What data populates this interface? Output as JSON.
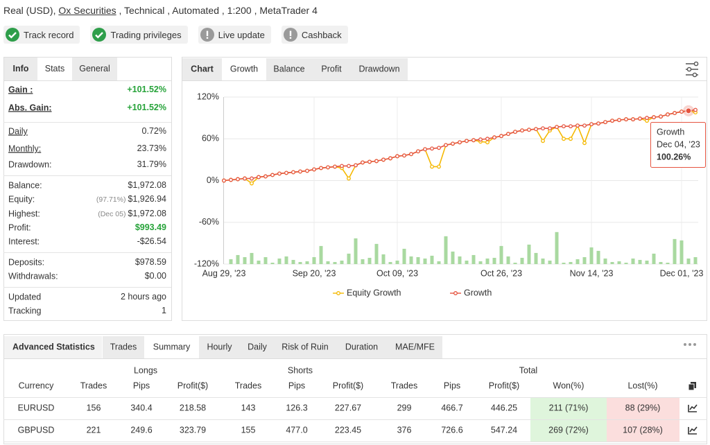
{
  "header": {
    "account": "Real (USD),",
    "broker": "Ox Securities",
    "details": ", Technical , Automated , 1:200 , MetaTrader 4"
  },
  "badges": [
    {
      "label": "Track record",
      "status": "ok"
    },
    {
      "label": "Trading privileges",
      "status": "ok"
    },
    {
      "label": "Live update",
      "status": "warn"
    },
    {
      "label": "Cashback",
      "status": "warn"
    }
  ],
  "info_panel": {
    "tabs": [
      "Info",
      "Stats",
      "General"
    ],
    "active_tab": 1,
    "groups": [
      [
        {
          "label": "Gain :",
          "value": "+101.52%",
          "color": "#27a33a",
          "underlined": true
        },
        {
          "label": "Abs. Gain:",
          "value": "+101.52%",
          "color": "#27a33a",
          "underlined": true
        }
      ],
      [
        {
          "label": "Daily",
          "value": "0.72%",
          "underlined": true
        },
        {
          "label": "Monthly:",
          "value": "23.73%",
          "underlined": true
        },
        {
          "label": "Drawdown:",
          "value": "31.79%"
        }
      ],
      [
        {
          "label": "Balance:",
          "value": "$1,972.08"
        },
        {
          "label": "Equity:",
          "note": "(97.71%)",
          "value": "$1,926.94"
        },
        {
          "label": "Highest:",
          "note": "(Dec 05)",
          "value": "$1,972.08"
        },
        {
          "label": "Profit:",
          "value": "$993.49",
          "color": "#27a33a"
        },
        {
          "label": "Interest:",
          "value": "-$26.54"
        }
      ],
      [
        {
          "label": "Deposits:",
          "value": "$978.59"
        },
        {
          "label": "Withdrawals:",
          "value": "$0.00"
        }
      ],
      [
        {
          "label": "Updated",
          "value": "2 hours ago"
        },
        {
          "label": "Tracking",
          "value": "1"
        }
      ]
    ]
  },
  "chart_panel": {
    "tabs": [
      "Chart",
      "Growth",
      "Balance",
      "Profit",
      "Drawdown"
    ],
    "active_tab": 1
  },
  "chart_data": {
    "type": "line",
    "categories": [
      "Aug 29, '23",
      null,
      null,
      null,
      null,
      null,
      null,
      null,
      null,
      null,
      null,
      null,
      null,
      "Sep 20, '23",
      null,
      null,
      null,
      null,
      null,
      null,
      null,
      null,
      null,
      null,
      null,
      "Oct 09, '23",
      null,
      null,
      null,
      null,
      null,
      null,
      null,
      null,
      null,
      null,
      null,
      null,
      null,
      null,
      "Oct 26, '23",
      null,
      null,
      null,
      null,
      null,
      null,
      null,
      null,
      null,
      null,
      null,
      null,
      "Nov 14, '23",
      null,
      null,
      null,
      null,
      null,
      null,
      null,
      null,
      null,
      null,
      null,
      null,
      "Dec 01, '23",
      null,
      null
    ],
    "series": [
      {
        "name": "Equity Growth",
        "color": "#f5b800",
        "values": [
          0,
          1,
          2,
          3,
          -4,
          5,
          6,
          8,
          10,
          11,
          12,
          13,
          14,
          16,
          18,
          19,
          20,
          18,
          3,
          22,
          26,
          27,
          28,
          30,
          32,
          35,
          36,
          38,
          42,
          45,
          20,
          20,
          51,
          53,
          55,
          57,
          58,
          56,
          55,
          62,
          64,
          67,
          70,
          72,
          73,
          74,
          57,
          72,
          77,
          60,
          60,
          79,
          54,
          81,
          82,
          84,
          86,
          87,
          88,
          88,
          89,
          86,
          91,
          92,
          95,
          97,
          99,
          100.26,
          98
        ]
      },
      {
        "name": "Growth",
        "color": "#e5533f",
        "values": [
          0,
          1,
          2,
          3,
          3,
          5,
          6,
          8,
          10,
          11,
          12,
          13,
          14,
          16,
          18,
          19,
          20,
          21,
          21,
          22,
          26,
          27,
          28,
          30,
          32,
          35,
          36,
          38,
          42,
          45,
          46,
          47,
          51,
          53,
          55,
          57,
          58,
          59,
          60,
          62,
          64,
          67,
          70,
          72,
          73,
          74,
          75,
          75,
          77,
          78,
          78,
          79,
          79,
          81,
          82,
          84,
          86,
          87,
          88,
          88,
          89,
          90,
          91,
          92,
          95,
          97,
          99,
          100.26,
          101.52
        ]
      }
    ],
    "bars": {
      "color": "#a9d9a0",
      "values": [
        null,
        -113,
        -107,
        -110,
        -104,
        -115,
        -110,
        -118,
        -112,
        -109,
        -114,
        -117,
        -116,
        -110,
        -94,
        -116,
        -117,
        -115,
        -105,
        -83,
        -113,
        -111,
        -91,
        -106,
        -117,
        -115,
        -98,
        -109,
        -110,
        -112,
        -108,
        -116,
        -80,
        -102,
        -109,
        -115,
        -107,
        -116,
        -112,
        -111,
        -94,
        -109,
        -118,
        -111,
        -92,
        -104,
        -112,
        -115,
        -74,
        -118,
        -117,
        -113,
        -110,
        -96,
        -101,
        -112,
        -117,
        -116,
        -118,
        -112,
        -114,
        -115,
        -105,
        -117,
        -118,
        -84,
        -86,
        -112,
        -110
      ]
    },
    "ylim": [
      -120,
      120
    ],
    "yticks": [
      {
        "value": -120,
        "label": "-120%"
      },
      {
        "value": -60,
        "label": "-60%"
      },
      {
        "value": 0,
        "label": "0%"
      },
      {
        "value": 60,
        "label": "60%"
      },
      {
        "value": 120,
        "label": "120%"
      }
    ],
    "grid": true,
    "tooltip": {
      "index": 67,
      "series": "Growth",
      "date": "Dec 04, '23",
      "value": "100.26%"
    }
  },
  "stats_panel": {
    "title": "Advanced Statistics",
    "tabs": [
      "Trades",
      "Summary",
      "Hourly",
      "Daily",
      "Risk of Ruin",
      "Duration",
      "MAE/MFE"
    ],
    "active_tab": 1,
    "groups": [
      "Longs",
      "Shorts",
      "Total"
    ],
    "columns": [
      "Currency",
      "Trades",
      "Pips",
      "Profit($)",
      "Trades",
      "Pips",
      "Profit($)",
      "Trades",
      "Pips",
      "Profit($)",
      "Won(%)",
      "Lost(%)"
    ],
    "rows": [
      [
        "EURUSD",
        "156",
        "340.4",
        "218.58",
        "143",
        "126.3",
        "227.67",
        "299",
        "466.7",
        "446.25",
        "211 (71%)",
        "88 (29%)"
      ],
      [
        "GBPUSD",
        "221",
        "249.6",
        "323.79",
        "155",
        "477.0",
        "223.45",
        "376",
        "726.6",
        "547.24",
        "269 (72%)",
        "107 (28%)"
      ]
    ]
  }
}
